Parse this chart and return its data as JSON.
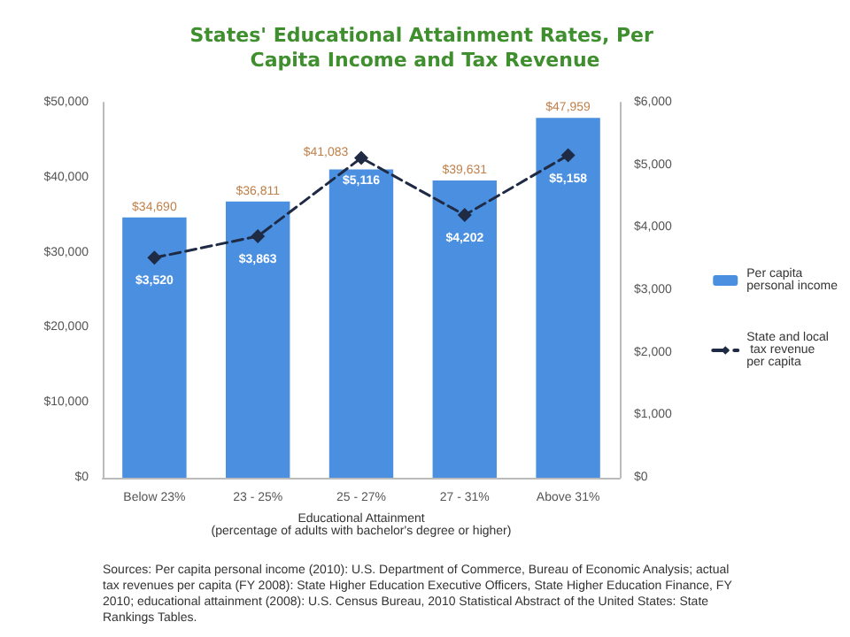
{
  "chart_data": {
    "type": "bar",
    "title": "States' Educational Attainment Rates, Per Capita Income and Tax Revenue",
    "xlabel": "Educational Attainment\n(percentage of adults with bachelor's degree or higher)",
    "categories": [
      "Below 23%",
      "23 - 25%",
      "25 - 27%",
      "27 - 31%",
      "Above 31%"
    ],
    "series": [
      {
        "name": "Per capita personal income",
        "color": "#4a8fe0",
        "values": [
          34690,
          36811,
          41083,
          39631,
          47959
        ],
        "value_labels": [
          "$34,690",
          "$36,811",
          "$41,083",
          "$39,631",
          "$47,959"
        ]
      },
      {
        "name": "State and local tax revenue per capita",
        "type": "line",
        "axis": "y2",
        "color": "#1f2a44",
        "marker": "diamond",
        "line_style": "dashed",
        "values": [
          3520,
          3863,
          5116,
          4202,
          5158
        ],
        "value_labels": [
          "$3,520",
          "$3,863",
          "$5,116",
          "$4,202",
          "$5,158"
        ]
      }
    ],
    "ylim": [
      0,
      50000
    ],
    "yticks": [
      {
        "value": 0,
        "label": "$0"
      },
      {
        "value": 10000,
        "label": "$10,000"
      },
      {
        "value": 20000,
        "label": "$20,000"
      },
      {
        "value": 30000,
        "label": "$30,000"
      },
      {
        "value": 40000,
        "label": "$40,000"
      },
      {
        "value": 50000,
        "label": "$50,000"
      }
    ],
    "y2lim": [
      0,
      6000
    ],
    "y2ticks": [
      {
        "value": 0,
        "label": "$0"
      },
      {
        "value": 1000,
        "label": "$1,000"
      },
      {
        "value": 2000,
        "label": "$2,000"
      },
      {
        "value": 3000,
        "label": "$3,000"
      },
      {
        "value": 4000,
        "label": "$4,000"
      },
      {
        "value": 5000,
        "label": "$5,000"
      },
      {
        "value": 6000,
        "label": "$6,000"
      }
    ],
    "legend": "right",
    "annotations": [
      "Sources: Per capita personal income (2010): U.S. Department of Commerce, Bureau of Economic Analysis; actual tax revenues per capita (FY 2008): State Higher Education Executive Officers, State Higher Education Finance, FY 2010; educational attainment (2008): U.S. Census Bureau, 2010 Statistical Abstract of the United States: State Rankings Tables."
    ]
  }
}
